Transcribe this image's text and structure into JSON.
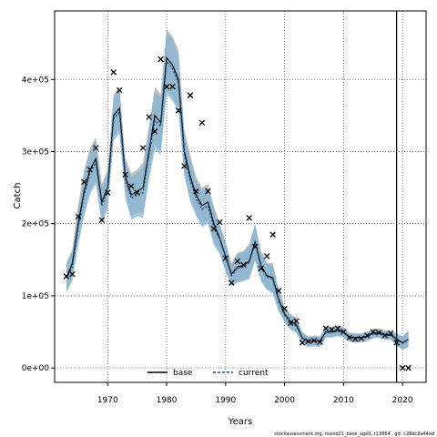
{
  "chart_data": {
    "type": "line",
    "title": "",
    "xlabel": "Years",
    "ylabel": "Catch",
    "xlim": [
      1961,
      2024
    ],
    "ylim": [
      -20000,
      495000
    ],
    "x_ticks": [
      1970,
      1980,
      1990,
      2000,
      2010,
      2020
    ],
    "x_tick_labels": [
      "1970",
      "1980",
      "1990",
      "2000",
      "2010",
      "2020"
    ],
    "y_ticks": [
      0,
      100000,
      200000,
      300000,
      400000
    ],
    "y_tick_labels": [
      "0e+00",
      "1e+05",
      "2e+05",
      "3e+05",
      "4e+05"
    ],
    "grid": true,
    "legend_position": "bottom-center",
    "vertical_line_year": 2019,
    "colors": {
      "base": "#000000",
      "current": "#1f4e79",
      "band": "#7fb3d5",
      "band_base": "#8c8c8c"
    },
    "years": [
      1963,
      1964,
      1965,
      1966,
      1967,
      1968,
      1969,
      1970,
      1971,
      1972,
      1973,
      1974,
      1975,
      1976,
      1977,
      1978,
      1979,
      1980,
      1981,
      1982,
      1983,
      1984,
      1985,
      1986,
      1987,
      1988,
      1989,
      1990,
      1991,
      1992,
      1993,
      1994,
      1995,
      1996,
      1997,
      1998,
      1999,
      2000,
      2001,
      2002,
      2003,
      2004,
      2005,
      2006,
      2007,
      2008,
      2009,
      2010,
      2011,
      2012,
      2013,
      2014,
      2015,
      2016,
      2017,
      2018,
      2019,
      2020,
      2021
    ],
    "series": [
      {
        "name": "base",
        "values": [
          125000,
          145000,
          200000,
          245000,
          275000,
          290000,
          230000,
          250000,
          350000,
          360000,
          265000,
          240000,
          245000,
          250000,
          300000,
          350000,
          340000,
          430000,
          420000,
          400000,
          300000,
          265000,
          240000,
          225000,
          230000,
          200000,
          180000,
          155000,
          130000,
          140000,
          142000,
          148000,
          175000,
          142000,
          128000,
          125000,
          95000,
          75000,
          65000,
          60000,
          42000,
          37000,
          38000,
          37000,
          50000,
          50000,
          52000,
          50000,
          43000,
          42000,
          42000,
          44000,
          48000,
          49000,
          46000,
          46000,
          40000,
          35000,
          40000
        ],
        "lower": [
          105000,
          125000,
          175000,
          215000,
          245000,
          260000,
          205000,
          225000,
          320000,
          330000,
          240000,
          210000,
          215000,
          215000,
          265000,
          310000,
          300000,
          385000,
          375000,
          360000,
          270000,
          235000,
          215000,
          200000,
          205000,
          175000,
          160000,
          135000,
          115000,
          120000,
          122000,
          125000,
          150000,
          122000,
          110000,
          105000,
          80000,
          65000,
          55000,
          50000,
          34000,
          30000,
          31000,
          30000,
          43000,
          43000,
          45000,
          43000,
          37000,
          36000,
          36000,
          38000,
          42000,
          43000,
          40000,
          40000,
          32000,
          26000,
          30000
        ],
        "upper": [
          145000,
          165000,
          225000,
          275000,
          305000,
          320000,
          255000,
          275000,
          380000,
          390000,
          290000,
          270000,
          275000,
          285000,
          335000,
          390000,
          380000,
          470000,
          460000,
          440000,
          330000,
          295000,
          265000,
          250000,
          255000,
          225000,
          200000,
          175000,
          145000,
          160000,
          162000,
          172000,
          200000,
          162000,
          146000,
          145000,
          110000,
          85000,
          75000,
          70000,
          50000,
          44000,
          45000,
          44000,
          57000,
          57000,
          59000,
          57000,
          49000,
          48000,
          48000,
          50000,
          54000,
          55000,
          52000,
          52000,
          48000,
          44000,
          52000
        ]
      },
      {
        "name": "current",
        "values": [
          125000,
          140000,
          195000,
          240000,
          270000,
          285000,
          225000,
          245000,
          345000,
          355000,
          260000,
          235000,
          240000,
          243000,
          295000,
          343000,
          335000,
          425000,
          415000,
          395000,
          295000,
          260000,
          235000,
          220000,
          225000,
          195000,
          178000,
          153000,
          128000,
          138000,
          140000,
          146000,
          173000,
          140000,
          126000,
          123000,
          93000,
          73000,
          63000,
          58000,
          41000,
          36000,
          37000,
          36000,
          49000,
          49000,
          51000,
          49000,
          42000,
          41000,
          41000,
          43000,
          47000,
          48000,
          45000,
          45000,
          39000,
          34000,
          39000
        ],
        "lower": [
          105000,
          120000,
          170000,
          210000,
          240000,
          255000,
          200000,
          220000,
          315000,
          325000,
          235000,
          205000,
          210000,
          208000,
          260000,
          303000,
          295000,
          380000,
          370000,
          355000,
          265000,
          230000,
          210000,
          195000,
          200000,
          170000,
          158000,
          133000,
          113000,
          118000,
          120000,
          123000,
          148000,
          120000,
          108000,
          103000,
          78000,
          63000,
          53000,
          48000,
          33000,
          29000,
          30000,
          29000,
          42000,
          42000,
          44000,
          42000,
          36000,
          35000,
          35000,
          37000,
          41000,
          42000,
          39000,
          39000,
          31000,
          25000,
          29000
        ],
        "upper": [
          145000,
          160000,
          220000,
          270000,
          300000,
          315000,
          250000,
          270000,
          375000,
          385000,
          285000,
          265000,
          270000,
          278000,
          330000,
          383000,
          375000,
          465000,
          455000,
          435000,
          325000,
          290000,
          260000,
          245000,
          250000,
          220000,
          198000,
          173000,
          143000,
          158000,
          160000,
          170000,
          198000,
          160000,
          144000,
          143000,
          108000,
          83000,
          73000,
          68000,
          49000,
          43000,
          44000,
          43000,
          56000,
          56000,
          58000,
          56000,
          48000,
          47000,
          47000,
          49000,
          53000,
          54000,
          51000,
          51000,
          47000,
          43000,
          51000
        ]
      }
    ],
    "observations": {
      "x": [
        1963,
        1964,
        1965,
        1966,
        1967,
        1968,
        1969,
        1970,
        1971,
        1972,
        1973,
        1974,
        1975,
        1976,
        1977,
        1978,
        1979,
        1980,
        1981,
        1982,
        1983,
        1984,
        1985,
        1986,
        1987,
        1988,
        1989,
        1990,
        1991,
        1992,
        1993,
        1994,
        1995,
        1996,
        1997,
        1998,
        1999,
        2000,
        2001,
        2002,
        2003,
        2004,
        2005,
        2006,
        2007,
        2008,
        2009,
        2010,
        2011,
        2012,
        2013,
        2014,
        2015,
        2016,
        2017,
        2018,
        2019,
        2020,
        2021
      ],
      "y": [
        127000,
        130000,
        210000,
        258000,
        275000,
        305000,
        205000,
        243000,
        410000,
        385000,
        268000,
        252000,
        243000,
        305000,
        348000,
        328000,
        428000,
        390000,
        390000,
        357000,
        280000,
        378000,
        245000,
        340000,
        245000,
        193000,
        202000,
        152000,
        118000,
        148000,
        143000,
        208000,
        168000,
        138000,
        155000,
        185000,
        107000,
        82000,
        62000,
        65000,
        35000,
        37000,
        38000,
        36000,
        55000,
        53000,
        55000,
        50000,
        42000,
        40000,
        41000,
        45000,
        50000,
        49000,
        45000,
        48000,
        35000,
        0,
        0
      ]
    }
  },
  "legend": {
    "base_label": "base",
    "current_label": "current"
  },
  "footer": "stockassessment.org, nscod21_base_age0, r13954 , git: c28dc2a44ad"
}
